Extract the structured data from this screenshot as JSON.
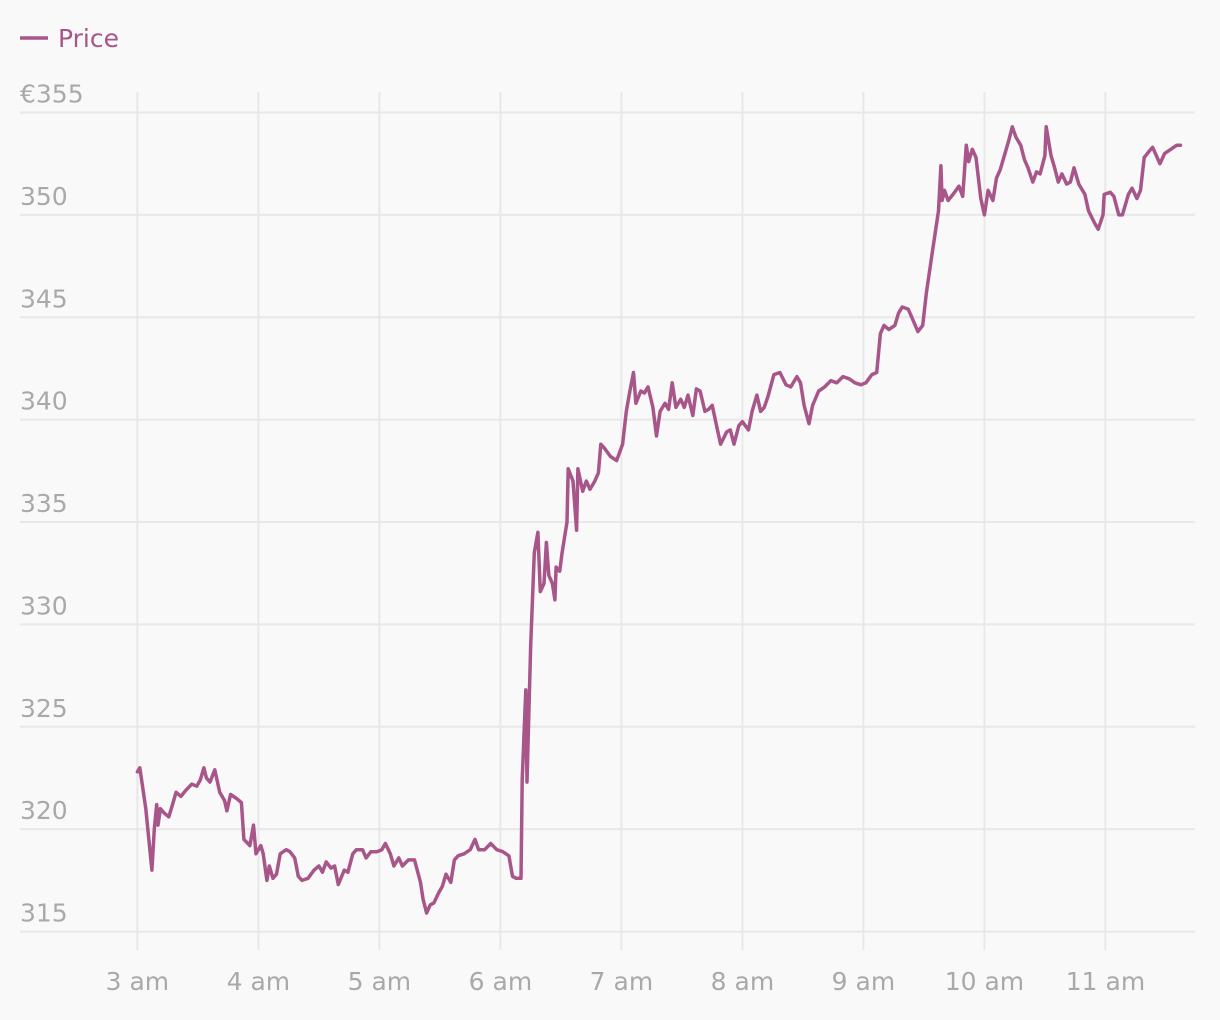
{
  "chart_data": {
    "type": "line",
    "legend": "top-left",
    "grid": true,
    "xlim": [
      2.03,
      11.74
    ],
    "ylim": [
      314.1,
      356
    ],
    "xticks": [
      {
        "value": 3,
        "label": "3 am"
      },
      {
        "value": 4,
        "label": "4 am"
      },
      {
        "value": 5,
        "label": "5 am"
      },
      {
        "value": 6,
        "label": "6 am"
      },
      {
        "value": 7,
        "label": "7 am"
      },
      {
        "value": 8,
        "label": "8 am"
      },
      {
        "value": 9,
        "label": "9 am"
      },
      {
        "value": 10,
        "label": "10 am"
      },
      {
        "value": 11,
        "label": "11 am"
      }
    ],
    "yticks": [
      315,
      320,
      325,
      330,
      335,
      340,
      345,
      350,
      {
        "value": 355,
        "label": "€355"
      }
    ],
    "x": [
      3.0,
      3.02,
      3.03,
      3.05,
      3.07,
      3.12,
      3.14,
      3.16,
      3.17,
      3.19,
      3.22,
      3.26,
      3.29,
      3.32,
      3.36,
      3.4,
      3.45,
      3.49,
      3.52,
      3.55,
      3.57,
      3.6,
      3.64,
      3.68,
      3.72,
      3.74,
      3.77,
      3.82,
      3.86,
      3.88,
      3.93,
      3.96,
      3.98,
      4.02,
      4.04,
      4.07,
      4.09,
      4.12,
      4.15,
      4.18,
      4.23,
      4.26,
      4.3,
      4.33,
      4.36,
      4.41,
      4.46,
      4.5,
      4.53,
      4.56,
      4.6,
      4.63,
      4.66,
      4.71,
      4.74,
      4.78,
      4.81,
      4.86,
      4.89,
      4.93,
      4.98,
      5.02,
      5.05,
      5.09,
      5.12,
      5.16,
      5.19,
      5.24,
      5.29,
      5.34,
      5.36,
      5.39,
      5.42,
      5.45,
      5.49,
      5.52,
      5.55,
      5.59,
      5.62,
      5.65,
      5.7,
      5.75,
      5.79,
      5.82,
      5.87,
      5.92,
      5.97,
      6.02,
      6.07,
      6.1,
      6.13,
      6.17,
      6.18,
      6.21,
      6.22,
      6.25,
      6.28,
      6.31,
      6.33,
      6.36,
      6.38,
      6.4,
      6.43,
      6.45,
      6.46,
      6.49,
      6.51,
      6.55,
      6.56,
      6.6,
      6.63,
      6.64,
      6.68,
      6.71,
      6.74,
      6.78,
      6.81,
      6.83,
      6.86,
      6.91,
      6.96,
      7.01,
      7.04,
      7.07,
      7.1,
      7.12,
      7.16,
      7.19,
      7.22,
      7.26,
      7.29,
      7.32,
      7.36,
      7.39,
      7.42,
      7.45,
      7.49,
      7.52,
      7.55,
      7.59,
      7.62,
      7.65,
      7.69,
      7.72,
      7.75,
      7.79,
      7.82,
      7.87,
      7.9,
      7.93,
      7.97,
      8.0,
      8.05,
      8.08,
      8.12,
      8.15,
      8.18,
      8.21,
      8.26,
      8.31,
      8.36,
      8.4,
      8.45,
      8.48,
      8.51,
      8.55,
      8.58,
      8.63,
      8.68,
      8.73,
      8.78,
      8.83,
      8.88,
      8.93,
      8.98,
      9.02,
      9.07,
      9.11,
      9.14,
      9.17,
      9.21,
      9.26,
      9.29,
      9.32,
      9.37,
      9.4,
      9.45,
      9.49,
      9.52,
      9.57,
      9.62,
      9.64,
      9.65,
      9.67,
      9.7,
      9.74,
      9.79,
      9.82,
      9.85,
      9.87,
      9.9,
      9.93,
      9.97,
      10.0,
      10.03,
      10.07,
      10.1,
      10.13,
      10.17,
      10.2,
      10.23,
      10.26,
      10.3,
      10.33,
      10.36,
      10.4,
      10.43,
      10.46,
      10.5,
      10.51,
      10.55,
      10.58,
      10.61,
      10.64,
      10.68,
      10.71,
      10.74,
      10.78,
      10.83,
      10.86,
      10.91,
      10.94,
      10.98,
      10.99,
      11.04,
      11.07,
      11.11,
      11.14,
      11.19,
      11.22,
      11.26,
      11.29,
      11.32,
      11.36,
      11.39,
      11.42,
      11.45,
      11.49,
      11.54,
      11.59,
      11.62
    ],
    "series": [
      {
        "name": "Price",
        "color": "#a8558a",
        "values": [
          322.8,
          323,
          322.6,
          321.8,
          321,
          318,
          320,
          321.2,
          320.2,
          321,
          320.8,
          320.6,
          321.2,
          321.8,
          321.6,
          321.9,
          322.2,
          322.1,
          322.4,
          323,
          322.5,
          322.3,
          322.9,
          321.8,
          321.4,
          320.9,
          321.7,
          321.5,
          321.3,
          319.5,
          319.2,
          320.2,
          318.8,
          319.2,
          318.8,
          317.5,
          318.2,
          317.6,
          317.8,
          318.8,
          319.0,
          318.9,
          318.6,
          317.7,
          317.5,
          317.6,
          318,
          318.2,
          317.9,
          318.4,
          318.1,
          318.2,
          317.3,
          318,
          317.9,
          318.8,
          319.0,
          319.0,
          318.6,
          318.9,
          318.9,
          319.0,
          319.3,
          318.8,
          318.2,
          318.6,
          318.2,
          318.5,
          318.5,
          317.4,
          316.6,
          315.9,
          316.3,
          316.4,
          316.9,
          317.2,
          317.8,
          317.4,
          318.5,
          318.7,
          318.8,
          319.0,
          319.5,
          319.0,
          319.0,
          319.3,
          319.0,
          318.9,
          318.7,
          317.7,
          317.6,
          317.6,
          322.4,
          326.8,
          322.3,
          329,
          333.5,
          334.5,
          331.6,
          332.0,
          334.0,
          332.4,
          332.0,
          331.2,
          332.8,
          332.6,
          333.5,
          335.0,
          337.6,
          337.0,
          334.6,
          337.6,
          336.5,
          337.0,
          336.6,
          337.0,
          337.4,
          338.8,
          338.6,
          338.2,
          338.0,
          338.8,
          340.4,
          341.4,
          342.3,
          340.8,
          341.4,
          341.3,
          341.6,
          340.6,
          339.2,
          340.4,
          340.8,
          340.5,
          341.8,
          340.6,
          341.0,
          340.6,
          341.2,
          340.2,
          341.5,
          341.4,
          340.4,
          340.5,
          340.7,
          339.6,
          338.8,
          339.4,
          339.5,
          338.8,
          339.7,
          339.9,
          339.5,
          340.4,
          341.2,
          340.4,
          340.6,
          341.1,
          342.2,
          342.3,
          341.7,
          341.6,
          342.1,
          341.8,
          340.7,
          339.8,
          340.7,
          341.4,
          341.6,
          341.9,
          341.8,
          342.1,
          342.0,
          341.8,
          341.7,
          341.8,
          342.2,
          342.3,
          344.2,
          344.6,
          344.4,
          344.6,
          345.2,
          345.5,
          345.4,
          345.0,
          344.3,
          344.6,
          346.2,
          348.2,
          350.2,
          352.4,
          350.7,
          351.2,
          350.7,
          351.0,
          351.4,
          350.9,
          353.4,
          352.6,
          353.2,
          352.8,
          350.8,
          350.0,
          351.2,
          350.7,
          351.8,
          352.2,
          353.0,
          353.6,
          354.3,
          353.8,
          353.4,
          352.7,
          352.3,
          351.6,
          352.1,
          352.0,
          352.9,
          354.3,
          352.9,
          352.3,
          351.6,
          352.0,
          351.5,
          351.6,
          352.3,
          351.5,
          351.0,
          350.2,
          349.6,
          349.3,
          350.0,
          351.0,
          351.1,
          350.9,
          350.0,
          350.0,
          351.0,
          351.3,
          350.8,
          351.2,
          352.8,
          353.1,
          353.3,
          352.9,
          352.5,
          353.0,
          353.2,
          353.4,
          353.4
        ]
      }
    ]
  }
}
